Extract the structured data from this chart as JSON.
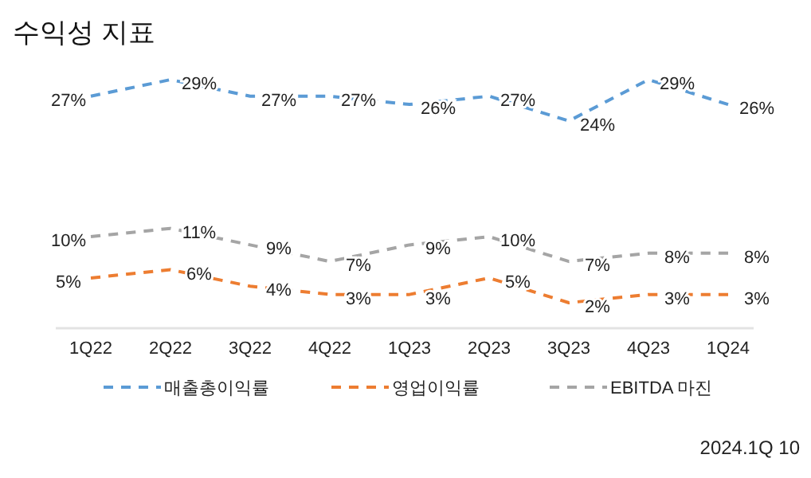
{
  "chart_data": {
    "type": "line",
    "title": "수익성 지표",
    "categories": [
      "1Q22",
      "2Q22",
      "3Q22",
      "4Q22",
      "1Q23",
      "2Q23",
      "3Q23",
      "4Q23",
      "1Q24"
    ],
    "series": [
      {
        "name": "매출총이익률",
        "color": "#5b9bd5",
        "values": [
          27,
          29,
          27,
          27,
          26,
          27,
          24,
          29,
          26
        ],
        "value_labels": [
          "27%",
          "29%",
          "27%",
          "27%",
          "26%",
          "27%",
          "24%",
          "29%",
          "26%"
        ]
      },
      {
        "name": "영업이익률",
        "color": "#ed7d31",
        "values": [
          5,
          6,
          4,
          3,
          3,
          5,
          2,
          3,
          3
        ],
        "value_labels": [
          "5%",
          "6%",
          "4%",
          "3%",
          "3%",
          "5%",
          "2%",
          "3%",
          "3%"
        ]
      },
      {
        "name": "EBITDA 마진",
        "color": "#a5a5a5",
        "values": [
          10,
          11,
          9,
          7,
          9,
          10,
          7,
          8,
          8
        ],
        "value_labels": [
          "10%",
          "11%",
          "9%",
          "7%",
          "9%",
          "10%",
          "7%",
          "8%",
          "8%"
        ]
      }
    ],
    "tick_labels": "x",
    "line_style": "dashed",
    "marker": "none",
    "legend": "bottom",
    "annotations": [
      "2024.1Q  10"
    ]
  }
}
